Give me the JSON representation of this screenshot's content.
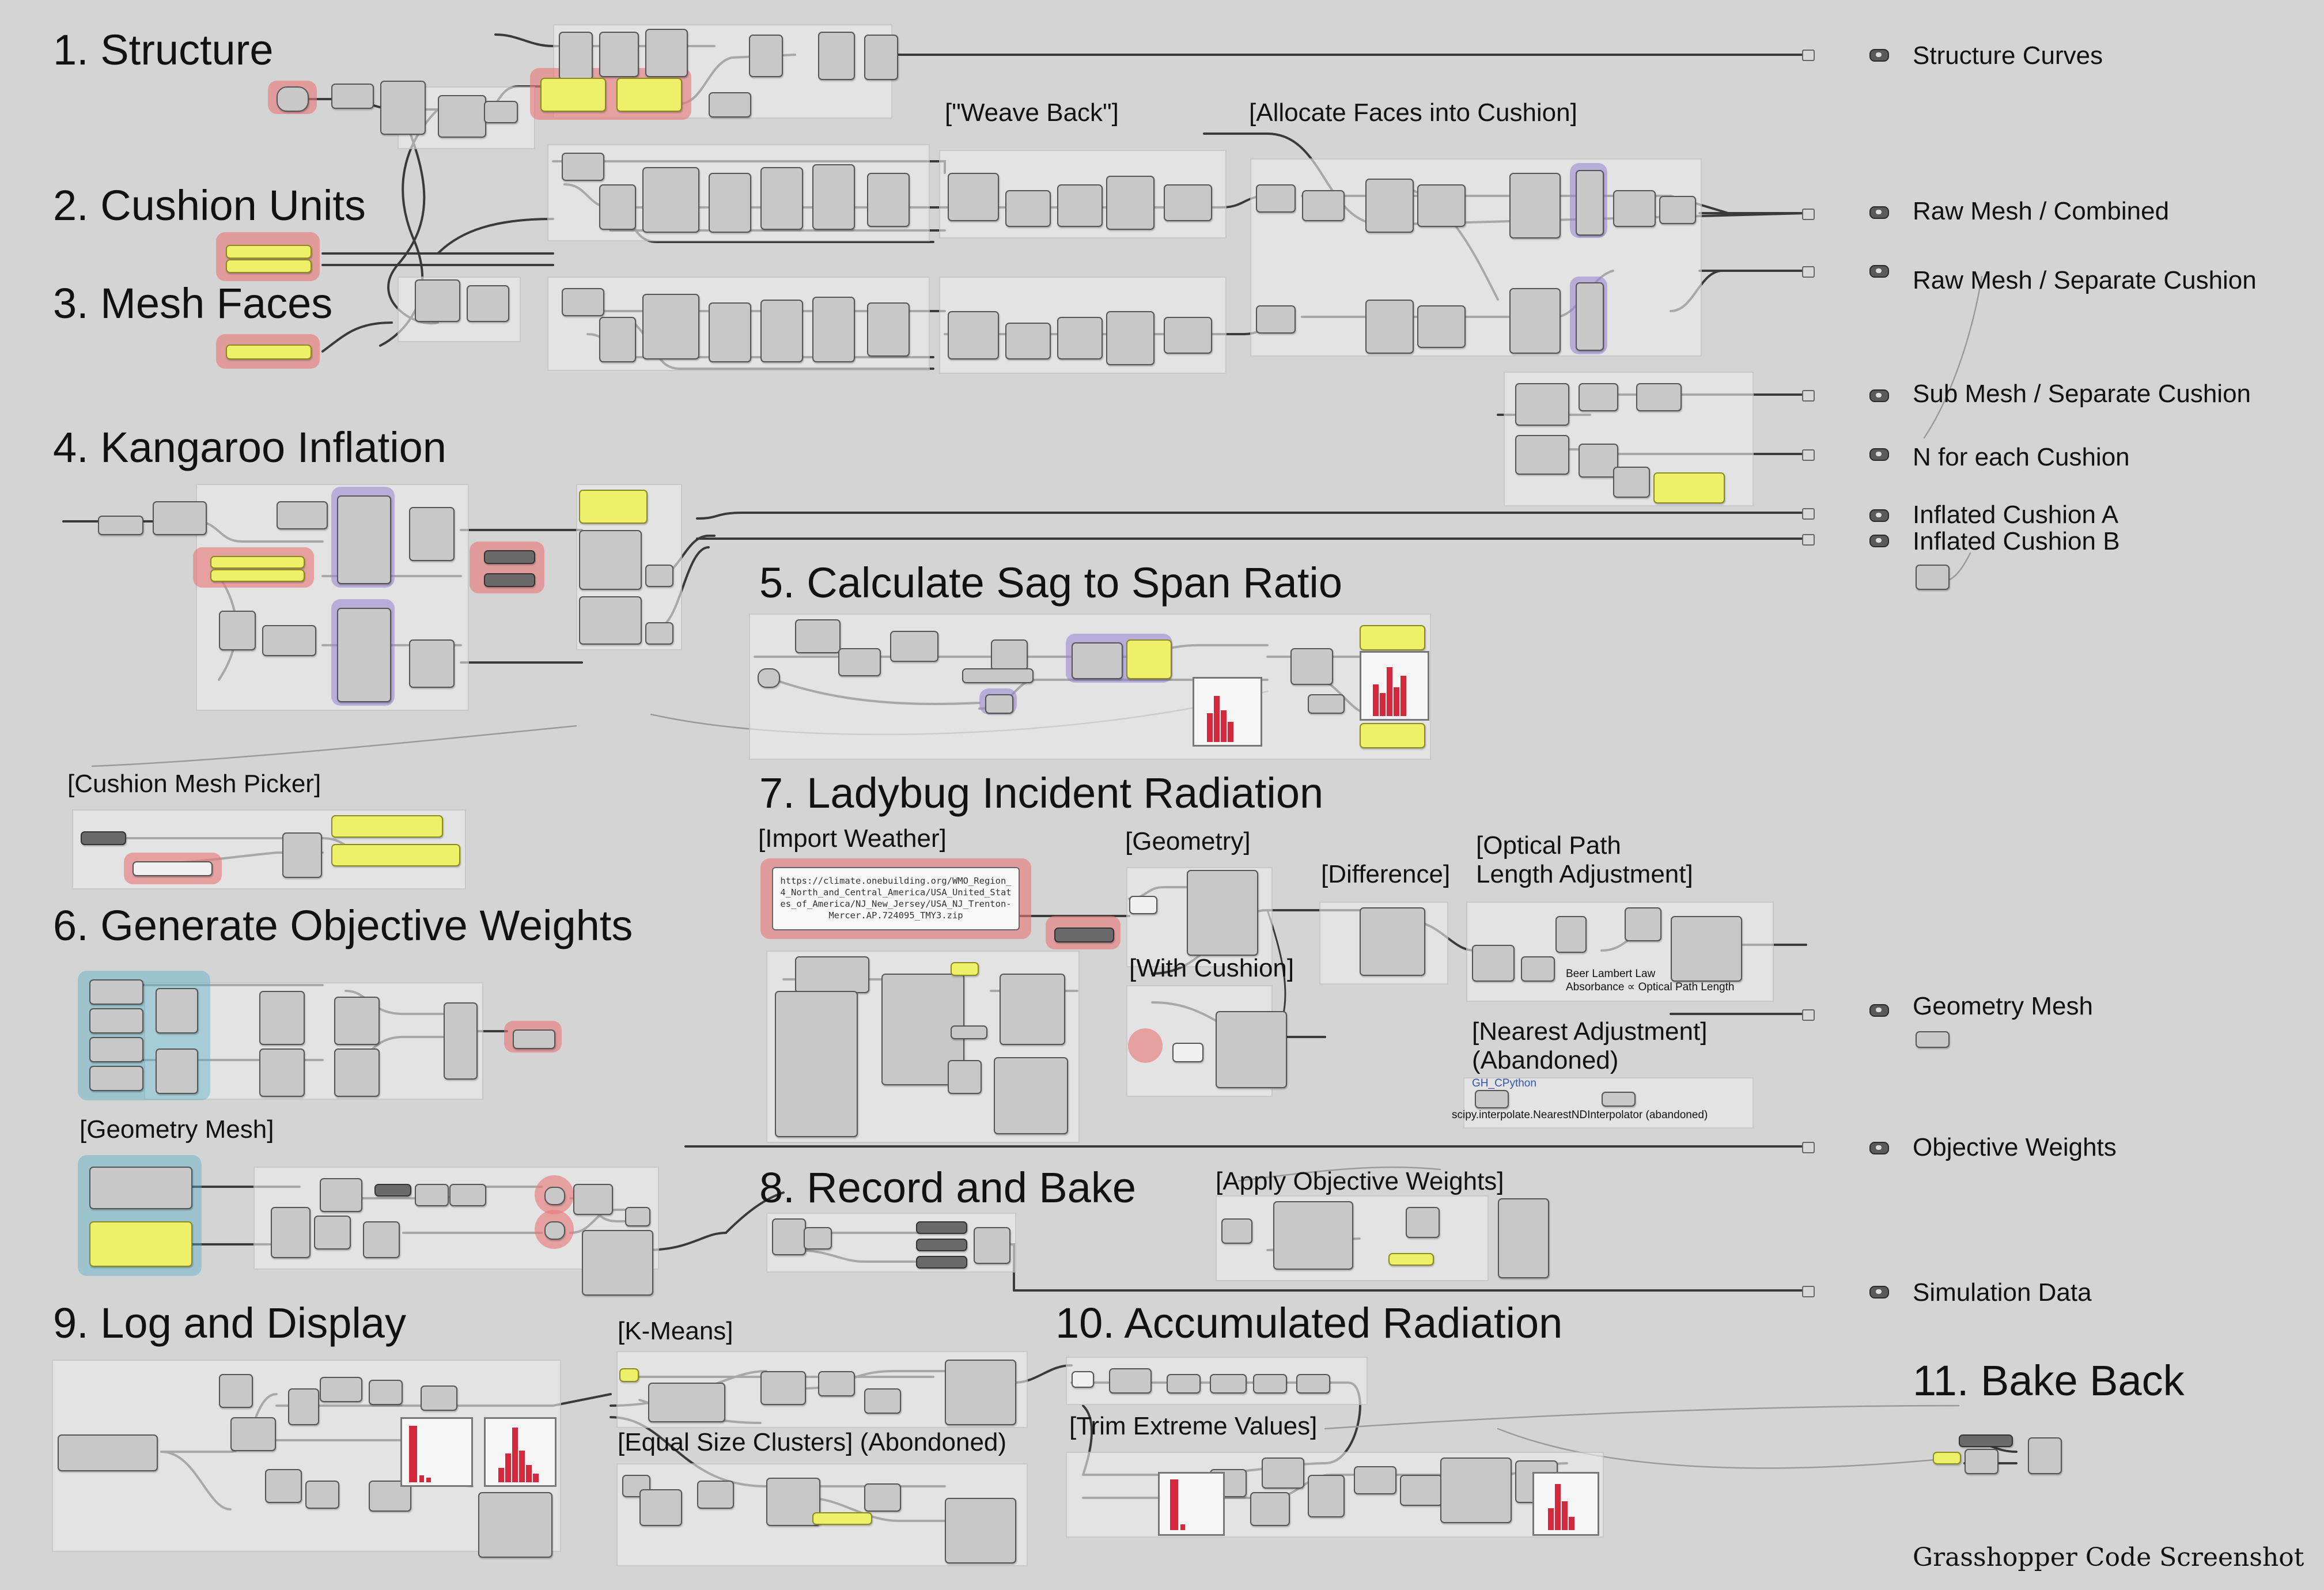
{
  "sections": {
    "s1": "1. Structure",
    "s2": "2. Cushion Units",
    "s3": "3. Mesh Faces",
    "s4": "4. Kangaroo Inflation",
    "s5": "5. Calculate Sag to Span Ratio",
    "s6": "6. Generate Objective Weights",
    "s7": "7. Ladybug Incident Radiation",
    "s8": "8. Record and Bake",
    "s9": "9. Log and Display",
    "s10": "10. Accumulated Radiation",
    "s11": "11. Bake Back"
  },
  "sub_labels": {
    "weave_back": "[\"Weave Back\"]",
    "allocate_faces": "[Allocate Faces into Cushion]",
    "cushion_mesh_picker": "[Cushion Mesh Picker]",
    "import_weather": "[Import Weather]",
    "geometry": "[Geometry]",
    "difference": "[Difference]",
    "optical_path_1": "[Optical Path",
    "optical_path_2": "Length Adjustment]",
    "with_cushion": "[With Cushion]",
    "nearest_adjustment_1": "[Nearest Adjustment]",
    "nearest_adjustment_2": "(Abandoned)",
    "geometry_mesh": "[Geometry Mesh]",
    "apply_objective_weights": "[Apply Objective Weights]",
    "k_means": "[K-Means]",
    "equal_size_clusters": "[Equal Size Clusters] (Abondoned)",
    "trim_extreme_values": "[Trim Extreme Values]"
  },
  "outputs": [
    "Structure Curves",
    "Raw Mesh / Combined",
    "Raw Mesh / Separate Cushion",
    "Sub Mesh / Separate Cushion",
    "N  for each Cushion",
    "Inflated Cushion A",
    "Inflated Cushion B",
    "Geometry Mesh",
    "Objective Weights",
    "Simulation Data"
  ],
  "weather_url": "https://climate.onebuilding.org/WMO_Region_4_North_and_Central_America/USA_United_States_of_America/NJ_New_Jersey/USA_NJ_Trenton-Mercer.AP.724095_TMY3.zip",
  "notes": {
    "beer_lambert_1": "Beer Lambert Law",
    "beer_lambert_2": "Absorbance ∝ Optical Path Length",
    "gh_cpython": "GH_CPython",
    "scipy_note": "scipy.interpolate.NearestNDInterpolator (abandoned)"
  },
  "footer": "Grasshopper Code Screenshot",
  "colors": {
    "canvas": "#d4d4d4",
    "group": "#ececec",
    "component": "#c8c8c8",
    "panel_yellow": "#eef06a",
    "highlight_red": "#e87878",
    "highlight_teal": "#5cb2c8",
    "highlight_purple": "#9682d2",
    "histogram_bar": "#d4283c",
    "wire": "#3a3a3a"
  }
}
